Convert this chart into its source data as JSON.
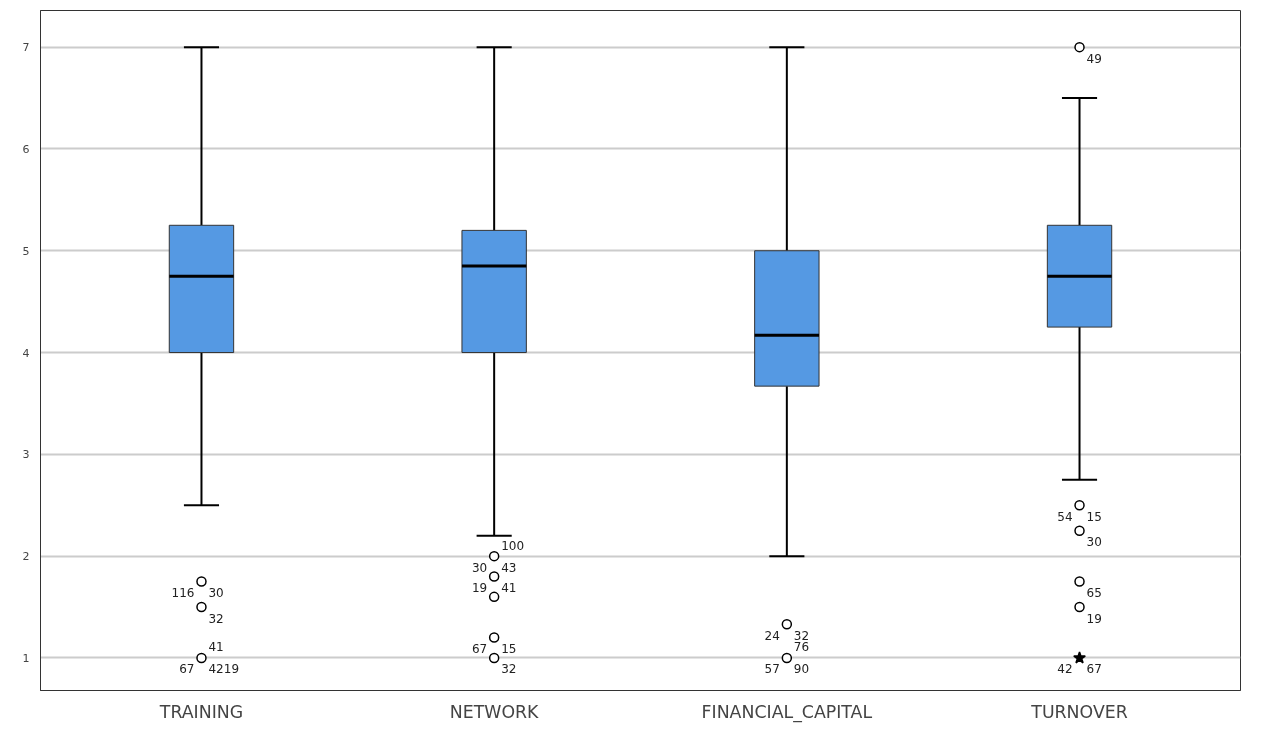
{
  "chart_data": {
    "type": "box",
    "categories": [
      "TRAINING",
      "NETWORK",
      "FINANCIAL_CAPITAL",
      "TURNOVER"
    ],
    "color": "#5599e3",
    "boxes": [
      {
        "low": 2.5,
        "q1": 4.0,
        "median": 4.75,
        "q3": 5.25,
        "high": 7.0
      },
      {
        "low": 2.2,
        "q1": 4.0,
        "median": 4.85,
        "q3": 5.2,
        "high": 7.0
      },
      {
        "low": 2.0,
        "q1": 3.67,
        "median": 4.17,
        "q3": 5.0,
        "high": 7.0
      },
      {
        "low": 2.75,
        "q1": 4.25,
        "median": 4.75,
        "q3": 5.25,
        "high": 6.5
      }
    ],
    "series": [
      {
        "type": "scatter",
        "marker": "circle",
        "color": "#000000",
        "x": [
          "TRAINING",
          "TRAINING",
          "TRAINING",
          "NETWORK",
          "NETWORK",
          "NETWORK",
          "NETWORK",
          "NETWORK",
          "FINANCIAL_CAPITAL",
          "FINANCIAL_CAPITAL",
          "TURNOVER",
          "TURNOVER",
          "TURNOVER",
          "TURNOVER",
          "TURNOVER"
        ],
        "values": [
          1.75,
          1.5,
          1.0,
          2.0,
          1.8,
          1.6,
          1.2,
          1.0,
          1.33,
          1.0,
          7.0,
          2.5,
          2.25,
          1.75,
          1.5
        ]
      },
      {
        "type": "scatter",
        "marker": "star",
        "color": "#000000",
        "x": [
          "TURNOVER"
        ],
        "values": [
          1.0
        ]
      }
    ],
    "ylim": [
      0.68,
      7.36
    ],
    "yticks": [
      1,
      2,
      3,
      4,
      5,
      6,
      7
    ],
    "grid": "y",
    "annotations": [
      {
        "text": "30",
        "x": "TRAINING",
        "y": 1.75
      },
      {
        "text": "116",
        "x": "TRAINING",
        "y": 1.75
      },
      {
        "text": "32",
        "x": "TRAINING",
        "y": 1.5
      },
      {
        "text": "4219",
        "x": "TRAINING",
        "y": 1.0
      },
      {
        "text": "67",
        "x": "TRAINING",
        "y": 1.0
      },
      {
        "text": "41",
        "x": "TRAINING",
        "y": 1.0
      },
      {
        "text": "43",
        "x": "NETWORK",
        "y": 2.0
      },
      {
        "text": "30",
        "x": "NETWORK",
        "y": 2.0
      },
      {
        "text": "100",
        "x": "NETWORK",
        "y": 2.0
      },
      {
        "text": "41",
        "x": "NETWORK",
        "y": 1.8
      },
      {
        "text": "19",
        "x": "NETWORK",
        "y": 1.8
      },
      {
        "text": "15",
        "x": "NETWORK",
        "y": 1.2
      },
      {
        "text": "67",
        "x": "NETWORK",
        "y": 1.2
      },
      {
        "text": "32",
        "x": "NETWORK",
        "y": 1.0
      },
      {
        "text": "32",
        "x": "FINANCIAL_CAPITAL",
        "y": 1.33
      },
      {
        "text": "24",
        "x": "FINANCIAL_CAPITAL",
        "y": 1.33
      },
      {
        "text": "90",
        "x": "FINANCIAL_CAPITAL",
        "y": 1.0
      },
      {
        "text": "57",
        "x": "FINANCIAL_CAPITAL",
        "y": 1.0
      },
      {
        "text": "76",
        "x": "FINANCIAL_CAPITAL",
        "y": 1.0
      },
      {
        "text": "49",
        "x": "TURNOVER",
        "y": 7.0
      },
      {
        "text": "15",
        "x": "TURNOVER",
        "y": 2.5
      },
      {
        "text": "54",
        "x": "TURNOVER",
        "y": 2.5
      },
      {
        "text": "30",
        "x": "TURNOVER",
        "y": 2.25
      },
      {
        "text": "65",
        "x": "TURNOVER",
        "y": 1.75
      },
      {
        "text": "19",
        "x": "TURNOVER",
        "y": 1.5
      },
      {
        "text": "67",
        "x": "TURNOVER",
        "y": 1.0
      },
      {
        "text": "42",
        "x": "TURNOVER",
        "y": 1.0
      }
    ]
  }
}
